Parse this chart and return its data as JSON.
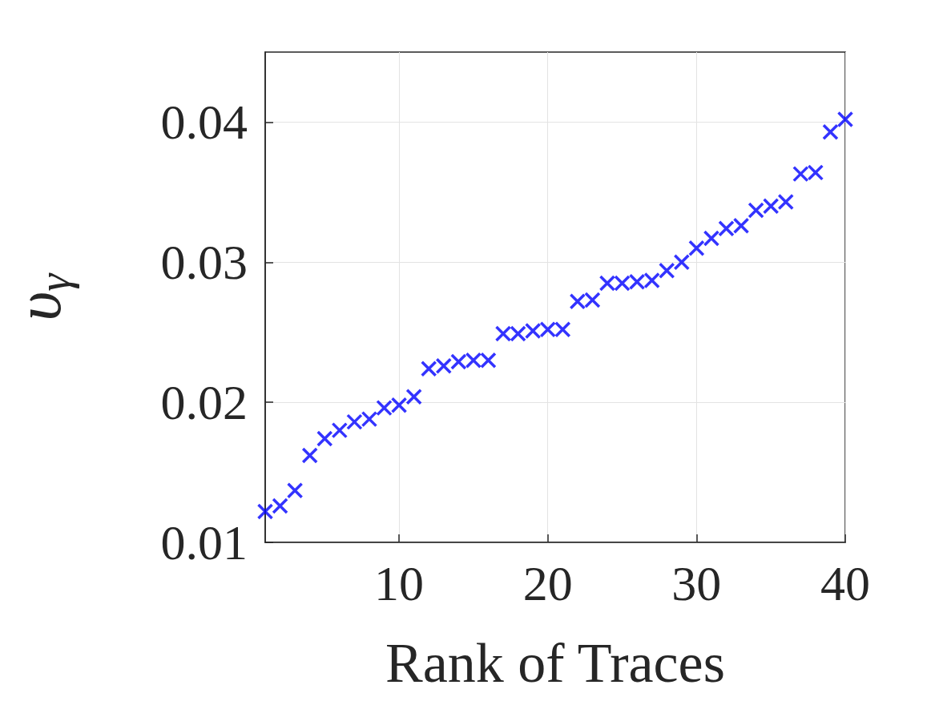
{
  "chart_data": {
    "type": "scatter",
    "xlabel": "Rank of Traces",
    "ylabel": "υ$_{γ}$",
    "x": [
      1,
      2,
      3,
      4,
      5,
      6,
      7,
      8,
      9,
      10,
      11,
      12,
      13,
      14,
      15,
      16,
      17,
      18,
      19,
      20,
      21,
      22,
      23,
      24,
      25,
      26,
      27,
      28,
      29,
      30,
      31,
      32,
      33,
      34,
      35,
      36,
      37,
      38,
      39,
      40
    ],
    "series": [
      {
        "color": "#0000ff",
        "values": [
          0.0122,
          0.0126,
          0.0137,
          0.0162,
          0.0174,
          0.018,
          0.0186,
          0.0188,
          0.0196,
          0.0198,
          0.0204,
          0.0224,
          0.0226,
          0.0229,
          0.023,
          0.023,
          0.0249,
          0.0249,
          0.0251,
          0.0252,
          0.0252,
          0.0272,
          0.0273,
          0.0285,
          0.0285,
          0.0286,
          0.0287,
          0.0294,
          0.03,
          0.031,
          0.0317,
          0.0324,
          0.0326,
          0.0337,
          0.034,
          0.0343,
          0.0363,
          0.0364,
          0.0393,
          0.0402
        ]
      }
    ],
    "xlim": [
      1,
      40
    ],
    "xticks": [
      10,
      20,
      30,
      40
    ],
    "ylim": [
      0.01,
      0.045
    ],
    "yticks": [
      0.01,
      0.02,
      0.03,
      0.04
    ],
    "grid": true,
    "marker": "cross"
  }
}
